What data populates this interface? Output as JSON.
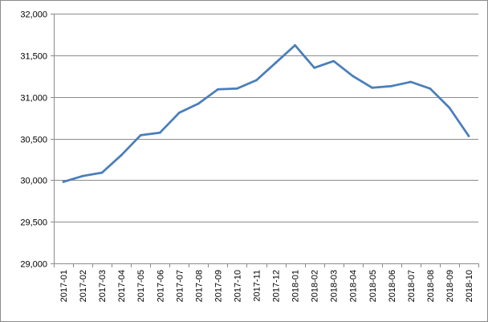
{
  "chart_data": {
    "type": "line",
    "categories": [
      "2017-01",
      "2017-02",
      "2017-03",
      "2017-04",
      "2017-05",
      "2017-06",
      "2017-07",
      "2017-08",
      "2017-09",
      "2017-10",
      "2017-11",
      "2017-12",
      "2018-01",
      "2018-02",
      "2018-03",
      "2018-04",
      "2018-05",
      "2018-06",
      "2018-07",
      "2018-08",
      "2018-09",
      "2018-10"
    ],
    "series": [
      {
        "values": [
          29980,
          30050,
          30090,
          30300,
          30540,
          30570,
          30810,
          30920,
          31090,
          31100,
          31200,
          31410,
          31620,
          31350,
          31430,
          31250,
          31110,
          31130,
          31180,
          31100,
          30870,
          30530
        ],
        "color": "#4a7ebb"
      }
    ],
    "ylim": [
      29000,
      32000
    ],
    "yticks": [
      "29,000",
      "29,500",
      "30,000",
      "30,500",
      "31,000",
      "31,500",
      "32,000"
    ],
    "grid": true,
    "gridColor": "#8c8c8c",
    "axisColor": "#8c8c8c",
    "legend": "none"
  }
}
